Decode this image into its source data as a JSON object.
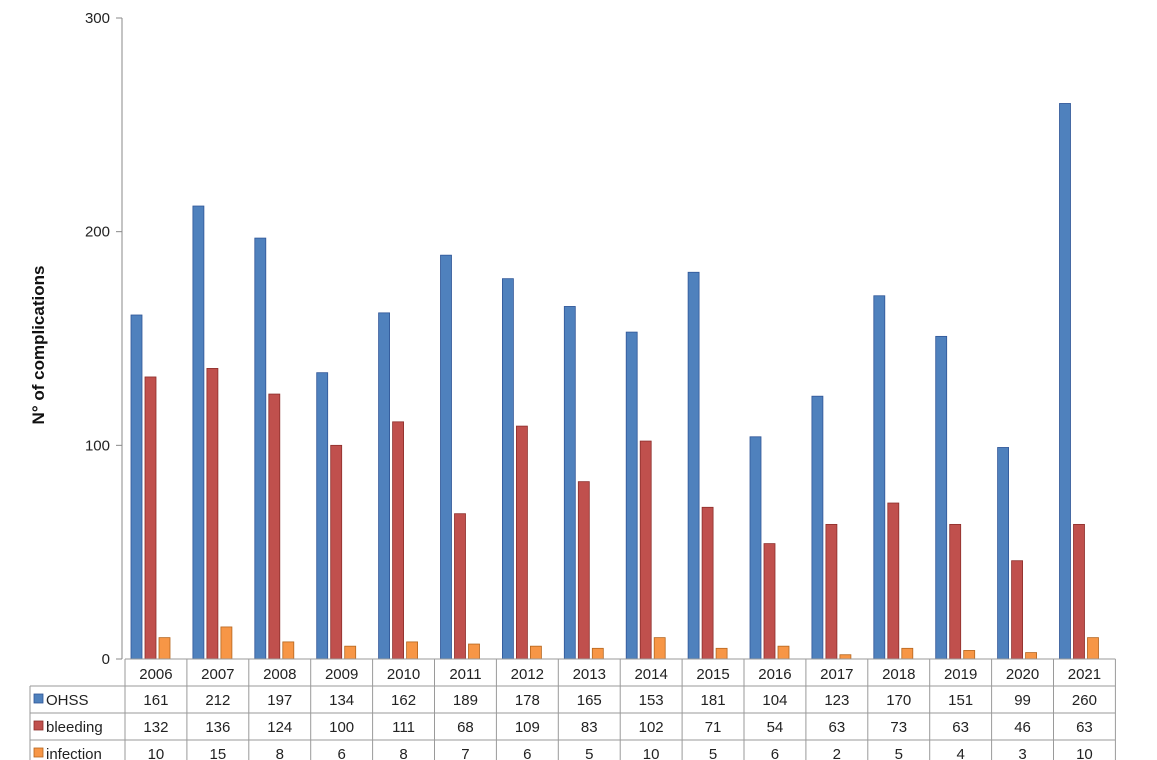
{
  "chart_data": {
    "type": "bar",
    "title": "",
    "xlabel": "",
    "ylabel": "N° of complications",
    "ylim": [
      0,
      300
    ],
    "yticks": [
      0,
      100,
      200,
      300
    ],
    "grid": false,
    "legend": "data-table-rows",
    "categories": [
      "2006",
      "2007",
      "2008",
      "2009",
      "2010",
      "2011",
      "2012",
      "2013",
      "2014",
      "2015",
      "2016",
      "2017",
      "2018",
      "2019",
      "2020",
      "2021"
    ],
    "series": [
      {
        "name": "OHSS",
        "color": "#4f81bd",
        "stroke": "#2f5597",
        "values": [
          161,
          212,
          197,
          134,
          162,
          189,
          178,
          165,
          153,
          181,
          104,
          123,
          170,
          151,
          99,
          260
        ]
      },
      {
        "name": "bleeding",
        "color": "#c0504d",
        "stroke": "#8c2d2a",
        "values": [
          132,
          136,
          124,
          100,
          111,
          68,
          109,
          83,
          102,
          71,
          54,
          63,
          73,
          63,
          46,
          63
        ]
      },
      {
        "name": "infection",
        "color": "#f79646",
        "stroke": "#b5651d",
        "values": [
          10,
          15,
          8,
          6,
          8,
          7,
          6,
          5,
          10,
          5,
          6,
          2,
          5,
          4,
          3,
          10
        ]
      }
    ]
  }
}
